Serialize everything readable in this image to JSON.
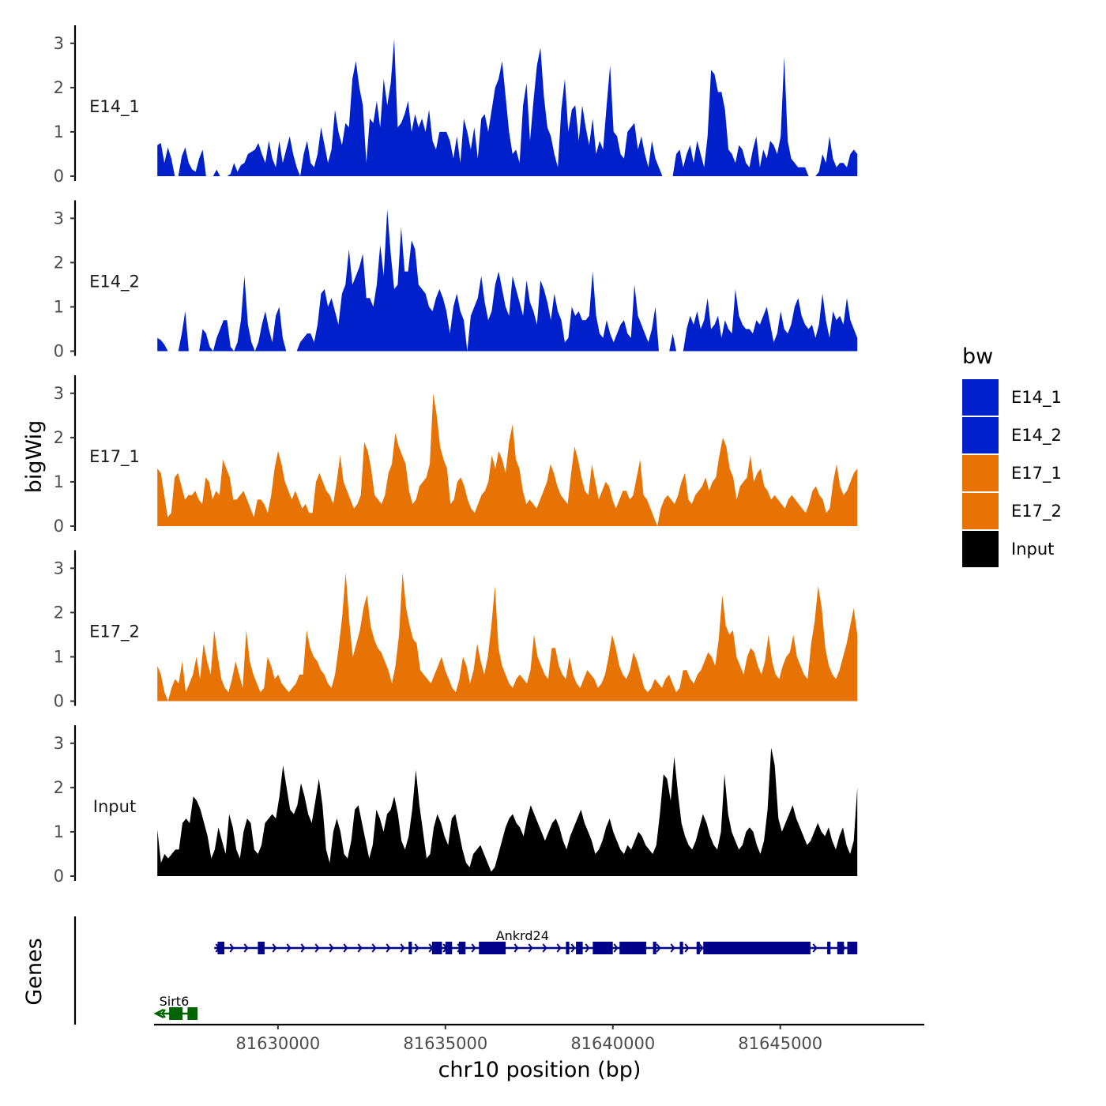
{
  "chart_data": {
    "type": "area",
    "title": "",
    "xlabel": "chr10 position (bp)",
    "ylabel": "bigWig",
    "gene_panel_label": "Genes",
    "xlim": [
      81626300,
      81649300
    ],
    "ylim": [
      0,
      3.3
    ],
    "x_ticks": [
      81630000,
      81635000,
      81640000,
      81645000
    ],
    "x_tick_labels": [
      "81630000",
      "81635000",
      "81640000",
      "81645000"
    ],
    "y_ticks": [
      0,
      1,
      2,
      3
    ],
    "y_tick_labels": [
      "0",
      "1",
      "2",
      "3"
    ],
    "data_range": [
      81626400,
      81647300
    ],
    "legend": {
      "title": "bw",
      "position": "right",
      "entries": [
        {
          "label": "E14_1",
          "color": "#0020CC"
        },
        {
          "label": "E14_2",
          "color": "#0020CC"
        },
        {
          "label": "E17_1",
          "color": "#E87305"
        },
        {
          "label": "E17_2",
          "color": "#E87305"
        },
        {
          "label": "Input",
          "color": "#000000"
        }
      ]
    },
    "series": [
      {
        "name": "E14_1",
        "color": "#0020CC",
        "values": [
          0.7,
          0.75,
          0.3,
          0.65,
          0.4,
          0,
          0,
          0.45,
          0.65,
          0.3,
          0.15,
          0.1,
          0.4,
          0.6,
          0,
          0,
          0,
          0.15,
          0,
          0,
          0,
          0.05,
          0.3,
          0.1,
          0.25,
          0.3,
          0.5,
          0.55,
          0.6,
          0.75,
          0.5,
          0.3,
          0.8,
          0.4,
          0.2,
          0.8,
          0.3,
          0.6,
          0.9,
          0.5,
          0.2,
          0,
          0.5,
          0.8,
          0.3,
          0.2,
          0.5,
          1.1,
          0.7,
          0.3,
          0.6,
          1.5,
          1.0,
          0.7,
          1.2,
          1.1,
          2.2,
          2.6,
          2.0,
          1.6,
          0.3,
          1.3,
          1.2,
          1.7,
          1.1,
          2.2,
          1.6,
          2.1,
          3.1,
          1.1,
          1.2,
          1.4,
          1.7,
          1.0,
          1.4,
          1.1,
          1.3,
          1.0,
          1.5,
          0.8,
          0.6,
          1.0,
          1.0,
          1.0,
          0.8,
          0.4,
          0.9,
          0.3,
          1.3,
          1.0,
          0.6,
          1.1,
          0.4,
          1.3,
          1.4,
          1.0,
          1.5,
          2.0,
          2.2,
          2.6,
          1.8,
          1.0,
          0.5,
          0.6,
          0.3,
          1.6,
          2.1,
          0.8,
          1.7,
          2.5,
          2.9,
          1.8,
          1.1,
          0.9,
          0.5,
          0.2,
          1.5,
          2.2,
          1.0,
          1.5,
          1.6,
          0.8,
          1.6,
          1.1,
          0.7,
          1.3,
          0.5,
          0.8,
          0.6,
          1.6,
          2.5,
          1.0,
          0.9,
          0.5,
          0.4,
          1.0,
          1.1,
          1.2,
          0.6,
          0.9,
          0.5,
          0.2,
          0.8,
          0.4,
          0.2,
          0,
          0,
          0,
          0,
          0.5,
          0.6,
          0.2,
          0.5,
          0.7,
          0.3,
          0.8,
          0.5,
          0.2,
          0.9,
          2.4,
          2.3,
          1.9,
          1.9,
          1.5,
          0.6,
          0.5,
          0.3,
          0.7,
          0.6,
          0.3,
          0.2,
          0.6,
          0.9,
          0.2,
          0.6,
          0.4,
          0.8,
          0.7,
          0.5,
          0.9,
          2.7,
          0.8,
          0.4,
          0.3,
          0.2,
          0.2,
          0.2,
          0,
          0,
          0,
          0.1,
          0.5,
          0.3,
          0.9,
          0.4,
          0.2,
          0.3,
          0.3,
          0.2,
          0.5,
          0.6,
          0.5
        ]
      },
      {
        "name": "E14_2",
        "color": "#0020CC",
        "values": [
          0.3,
          0.25,
          0.15,
          0,
          0,
          0,
          0,
          0.4,
          0.9,
          0,
          0,
          0,
          0,
          0.5,
          0.4,
          0.1,
          0,
          0.3,
          0.5,
          0.7,
          0.7,
          0.1,
          0,
          0.2,
          0.7,
          1.7,
          0.6,
          0.2,
          0,
          0.2,
          0.6,
          0.9,
          0.5,
          0.2,
          0.8,
          1.0,
          0.3,
          0,
          0,
          0,
          0,
          0.2,
          0.3,
          0.4,
          0.4,
          0.2,
          0.6,
          1.3,
          1.4,
          1.0,
          1.2,
          0.9,
          0.6,
          1.3,
          1.5,
          2.3,
          1.5,
          1.7,
          1.9,
          2.2,
          1.2,
          1.2,
          1.0,
          1.5,
          2.4,
          1.7,
          3.2,
          2.2,
          1.4,
          1.5,
          2.8,
          1.8,
          1.8,
          2.5,
          2.3,
          1.5,
          1.4,
          1.3,
          1.0,
          0.9,
          1.2,
          1.4,
          1.2,
          0.9,
          0.4,
          1.0,
          1.3,
          0.9,
          0.7,
          0,
          0.8,
          1.0,
          1.2,
          1.7,
          1.1,
          0.7,
          0.9,
          1.5,
          1.8,
          1.4,
          1.0,
          0.8,
          1.7,
          1.4,
          1.1,
          0.8,
          1.6,
          1.1,
          0.9,
          0.6,
          1.6,
          1.4,
          1.1,
          0.7,
          1.3,
          0.9,
          0.7,
          0.2,
          0.3,
          1.0,
          0.8,
          0.9,
          0.7,
          0.7,
          0.8,
          1.8,
          0.8,
          0.4,
          0.3,
          0.7,
          0.4,
          0.2,
          0.4,
          0.6,
          0.7,
          0.4,
          0.3,
          1.5,
          0.8,
          0.6,
          0.4,
          0.2,
          0.5,
          1.0,
          0,
          0,
          0,
          0,
          0.4,
          0,
          0,
          0,
          0.5,
          0.8,
          0.6,
          0.9,
          0.5,
          0.7,
          1.2,
          0.5,
          0.6,
          0.8,
          0.3,
          0.7,
          0.5,
          0.4,
          1.4,
          0.8,
          0.6,
          0.5,
          0.5,
          0.4,
          0.7,
          0.6,
          0.8,
          1.0,
          0.6,
          0.2,
          0.4,
          0.9,
          0.5,
          0.4,
          0.6,
          1.0,
          1.2,
          0.8,
          0.6,
          0.5,
          0.6,
          0.3,
          0.6,
          1.3,
          0.7,
          0.3,
          0.9,
          0.7,
          0.8,
          0.6,
          1.2,
          0.7,
          0.5,
          0.3
        ]
      },
      {
        "name": "E17_1",
        "color": "#E87305",
        "values": [
          1.3,
          1.2,
          0.7,
          0.2,
          0.3,
          1.1,
          1.2,
          0.9,
          0.6,
          0.7,
          0.7,
          0.8,
          0.6,
          0.5,
          1.1,
          1.0,
          0.6,
          0.8,
          0.7,
          1.5,
          1.3,
          1.1,
          0.6,
          0.6,
          0.7,
          0.8,
          0.6,
          0.4,
          0.2,
          0.6,
          0.6,
          0.5,
          0.3,
          0.7,
          1.3,
          1.7,
          1.4,
          1.0,
          0.8,
          0.6,
          0.8,
          0.6,
          0.4,
          0.5,
          0.3,
          0.3,
          1.0,
          1.2,
          1.0,
          0.8,
          0.7,
          0.5,
          1.0,
          1.6,
          1.0,
          0.8,
          0.6,
          0.4,
          0.5,
          0.7,
          1.9,
          1.7,
          1.3,
          0.7,
          0.6,
          0.5,
          0.7,
          1.2,
          1.4,
          2.1,
          1.8,
          1.6,
          1.4,
          0.8,
          0.5,
          0.6,
          0.9,
          1.0,
          1.1,
          1.4,
          3.0,
          2.5,
          1.8,
          1.5,
          1.3,
          0.5,
          0.6,
          1.0,
          1.1,
          0.9,
          0.6,
          0.4,
          0.3,
          0.5,
          0.7,
          0.8,
          1.0,
          1.6,
          1.3,
          1.7,
          1.5,
          1.2,
          1.9,
          2.3,
          1.5,
          1.3,
          0.8,
          0.5,
          0.6,
          0.5,
          0.4,
          0.6,
          0.8,
          1.0,
          1.4,
          1.2,
          0.9,
          0.7,
          0.6,
          0.5,
          1.2,
          1.8,
          1.5,
          1.1,
          0.8,
          0.7,
          1.4,
          1.0,
          0.6,
          0.8,
          1.0,
          0.9,
          0.6,
          0.4,
          0.6,
          0.8,
          0.8,
          0.6,
          0.7,
          1.1,
          1.5,
          0.7,
          0.6,
          0.4,
          0.2,
          0,
          0.4,
          0.6,
          0.7,
          0.6,
          0.5,
          0.7,
          1.0,
          1.2,
          0.6,
          0.5,
          0.7,
          0.8,
          0.9,
          1.1,
          0.8,
          1.0,
          1.1,
          1.6,
          2.0,
          1.8,
          1.3,
          1.1,
          0.6,
          0.9,
          1.0,
          1.1,
          1.6,
          1.0,
          1.2,
          1.3,
          0.9,
          0.8,
          0.6,
          0.7,
          0.6,
          0.5,
          0.4,
          0.6,
          0.7,
          0.6,
          0.5,
          0.4,
          0.3,
          0.5,
          0.8,
          0.9,
          0.7,
          0.6,
          0.3,
          0.4,
          1.0,
          1.4,
          0.9,
          0.7,
          0.8,
          1.0,
          1.2,
          1.3
        ]
      },
      {
        "name": "E17_2",
        "color": "#E87305",
        "values": [
          0.8,
          0.6,
          0.2,
          0,
          0.3,
          0.5,
          0.4,
          0.9,
          0.2,
          0.4,
          0.6,
          1.0,
          0.5,
          1.3,
          0.9,
          0.6,
          1.6,
          1.0,
          0.5,
          0.3,
          0.2,
          0.5,
          0.9,
          0.6,
          0.3,
          1.6,
          0.9,
          0.6,
          0.4,
          0.2,
          0.3,
          1.0,
          0.8,
          0.5,
          0.6,
          0.4,
          0.3,
          0.2,
          0.3,
          0.4,
          0.6,
          0.6,
          1.6,
          1.2,
          1.0,
          0.9,
          0.7,
          0.6,
          0.4,
          0.3,
          0.6,
          1.2,
          1.9,
          2.9,
          1.8,
          1.0,
          1.3,
          1.6,
          2.1,
          2.4,
          1.7,
          1.4,
          1.2,
          1.1,
          0.9,
          0.7,
          0.4,
          0.8,
          1.5,
          2.9,
          2.1,
          1.7,
          1.4,
          1.3,
          0.7,
          0.6,
          0.5,
          0.4,
          0.6,
          0.8,
          1.0,
          0.7,
          0.5,
          0.3,
          0.2,
          0.5,
          1.0,
          0.8,
          0.4,
          0.7,
          1.3,
          0.9,
          0.6,
          1.0,
          1.7,
          2.6,
          1.2,
          0.8,
          0.6,
          0.4,
          0.3,
          0.5,
          0.6,
          0.5,
          0.4,
          0.7,
          1.5,
          1.0,
          0.8,
          0.6,
          0.5,
          1.2,
          1.2,
          0.8,
          0.6,
          0.5,
          1.0,
          0.6,
          0.4,
          0.3,
          0.5,
          0.7,
          0.6,
          0.5,
          0.3,
          0.4,
          0.6,
          1.0,
          1.5,
          1.2,
          0.8,
          0.6,
          0.5,
          0.7,
          1.1,
          0.9,
          0.6,
          0.3,
          0.2,
          0.3,
          0.5,
          0.4,
          0.3,
          0.5,
          0.6,
          0.4,
          0.2,
          0.3,
          0.7,
          0.7,
          0.5,
          0.4,
          0.6,
          0.7,
          0.9,
          1.1,
          1.0,
          0.8,
          1.4,
          2.4,
          1.7,
          1.5,
          1.6,
          1.0,
          0.8,
          0.6,
          1.0,
          1.2,
          1.1,
          0.8,
          0.6,
          0.9,
          1.5,
          0.9,
          0.6,
          0.5,
          0.8,
          1.0,
          1.1,
          1.5,
          1.0,
          0.8,
          0.6,
          0.5,
          1.3,
          1.8,
          2.6,
          2.1,
          1.2,
          0.8,
          0.6,
          0.5,
          0.7,
          1.0,
          1.3,
          1.7,
          2.1,
          1.5
        ]
      },
      {
        "name": "Input",
        "color": "#000000",
        "values": [
          1.05,
          0.3,
          0.5,
          0.4,
          0.5,
          0.6,
          0.6,
          1.2,
          1.3,
          1.2,
          1.8,
          1.7,
          1.5,
          1.2,
          0.9,
          0.4,
          0.6,
          1.1,
          0.8,
          0.5,
          1.4,
          1.1,
          0.6,
          0.4,
          1.0,
          1.3,
          1.2,
          0.6,
          0.5,
          0.7,
          1.2,
          1.3,
          1.4,
          1.3,
          1.8,
          2.5,
          2.0,
          1.5,
          1.4,
          1.6,
          2.1,
          1.8,
          1.4,
          1.2,
          1.7,
          2.2,
          1.6,
          0.6,
          0.3,
          1.0,
          1.3,
          1.0,
          0.5,
          0.4,
          0.8,
          1.5,
          1.6,
          1.2,
          0.8,
          0.4,
          0.7,
          1.5,
          1.3,
          1.0,
          1.4,
          1.5,
          1.8,
          1.4,
          0.8,
          0.6,
          0.9,
          1.5,
          2.4,
          1.6,
          1.0,
          0.4,
          0.5,
          1.1,
          1.4,
          1.2,
          0.9,
          0.7,
          1.3,
          1.4,
          1.0,
          0.6,
          0.3,
          0.2,
          0.5,
          0.6,
          0.7,
          0.5,
          0.3,
          0.1,
          0.2,
          0.5,
          0.8,
          1.1,
          1.3,
          1.4,
          1.2,
          1.1,
          0.9,
          1.3,
          1.6,
          1.4,
          1.2,
          1.0,
          0.8,
          1.0,
          1.2,
          1.3,
          1.1,
          0.8,
          0.6,
          0.9,
          1.1,
          1.3,
          1.5,
          1.2,
          1.0,
          0.8,
          0.5,
          0.6,
          0.8,
          1.1,
          1.3,
          1.0,
          0.8,
          0.6,
          0.5,
          0.7,
          0.6,
          0.8,
          1.0,
          0.9,
          0.7,
          0.6,
          0.5,
          0.7,
          1.4,
          2.3,
          2.2,
          1.7,
          2.7,
          1.9,
          1.2,
          0.9,
          0.7,
          0.6,
          0.8,
          1.1,
          1.4,
          1.2,
          0.9,
          0.7,
          0.6,
          1.0,
          2.3,
          1.4,
          1.0,
          0.8,
          0.6,
          0.7,
          1.0,
          1.1,
          1.0,
          0.7,
          0.5,
          0.8,
          1.5,
          2.9,
          2.5,
          1.3,
          1.0,
          1.2,
          1.4,
          1.6,
          1.3,
          1.1,
          0.9,
          0.7,
          0.8,
          1.0,
          1.2,
          1.0,
          0.9,
          1.1,
          0.8,
          0.6,
          0.9,
          1.1,
          0.7,
          0.5,
          0.8,
          2.0
        ]
      }
    ],
    "genes": [
      {
        "name": "Ankrd24",
        "strand": "+",
        "color": "#00008B",
        "start": 81628100,
        "end": 81647300,
        "exons": [
          [
            81628200,
            81628400
          ],
          [
            81629400,
            81629600
          ],
          [
            81633900,
            81634000
          ],
          [
            81634600,
            81634900
          ],
          [
            81635000,
            81635200
          ],
          [
            81635400,
            81635600
          ],
          [
            81636000,
            81636800
          ],
          [
            81638600,
            81638700
          ],
          [
            81638900,
            81639100
          ],
          [
            81639400,
            81640000
          ],
          [
            81640200,
            81641000
          ],
          [
            81641200,
            81641300
          ],
          [
            81642000,
            81642100
          ],
          [
            81642500,
            81642600
          ],
          [
            81642700,
            81645900
          ],
          [
            81646400,
            81646500
          ],
          [
            81646700,
            81646900
          ],
          [
            81647000,
            81647300
          ]
        ]
      },
      {
        "name": "Sirt6",
        "strand": "-",
        "color": "#006400",
        "start": 81626400,
        "end": 81627600,
        "exons": [
          [
            81626750,
            81627150
          ],
          [
            81627300,
            81627600
          ]
        ]
      }
    ]
  }
}
